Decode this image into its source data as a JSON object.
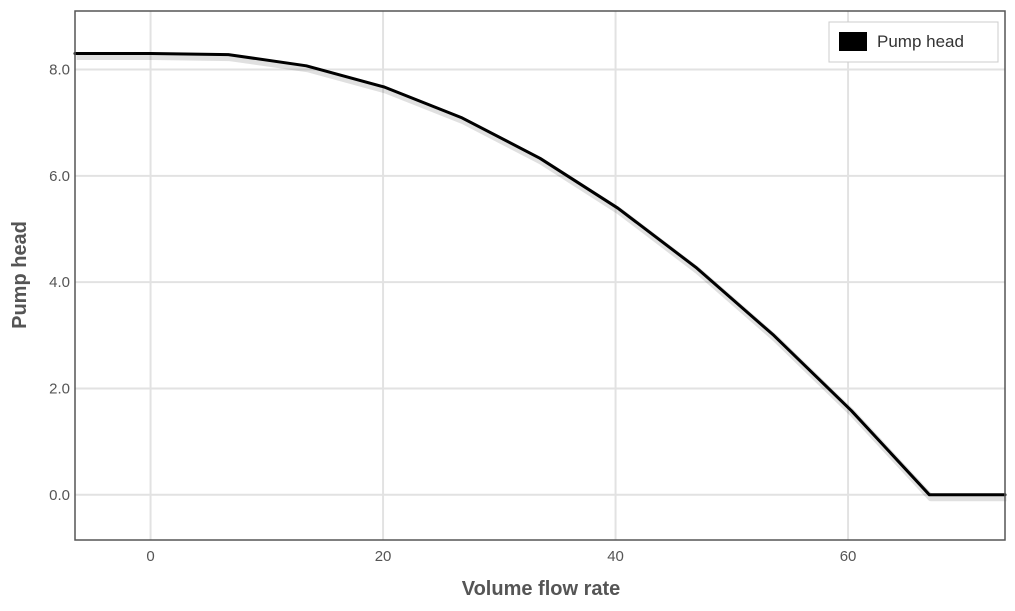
{
  "chart_data": {
    "type": "line",
    "xlabel": "Volume flow rate",
    "ylabel": "Pump head",
    "xlim": [
      -6.5,
      73.5
    ],
    "ylim": [
      -0.85,
      9.1
    ],
    "x_ticks": [
      0,
      20,
      40,
      60
    ],
    "x_tick_labels": [
      "0",
      "20",
      "40",
      "60"
    ],
    "y_ticks": [
      0,
      2,
      4,
      6,
      8
    ],
    "y_tick_labels": [
      "0.0",
      "2.0",
      "4.0",
      "6.0",
      "8.0"
    ],
    "grid": true,
    "legend": {
      "position": "top-right",
      "entries": [
        "Pump head"
      ]
    },
    "series": [
      {
        "name": "Pump head",
        "color": "#000000",
        "x": [
          -6.5,
          0,
          6.7,
          13.4,
          20.1,
          26.8,
          33.5,
          40.2,
          46.9,
          53.6,
          60.3,
          67.0,
          73.5
        ],
        "y": [
          8.3,
          8.3,
          8.28,
          8.07,
          7.67,
          7.09,
          6.33,
          5.39,
          4.28,
          3.0,
          1.58,
          0.0,
          0.0
        ]
      }
    ]
  }
}
